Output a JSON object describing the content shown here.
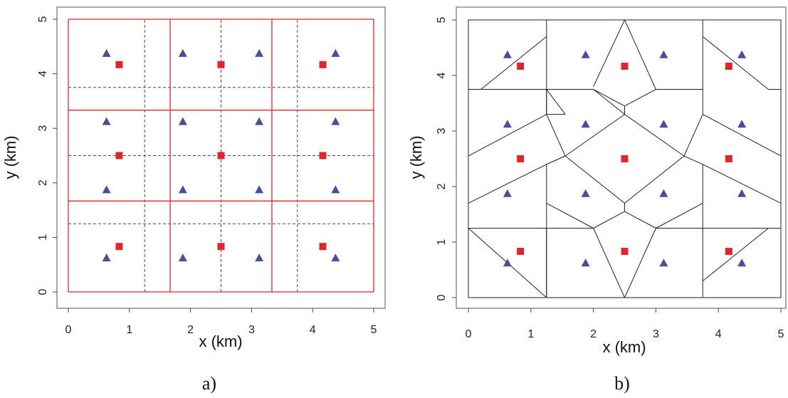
{
  "chart_data": [
    {
      "type": "scatter",
      "caption": "a)",
      "xlabel": "x (km)",
      "ylabel": "y (km)",
      "xlim": [
        0,
        5
      ],
      "ylim": [
        0,
        5
      ],
      "xticks": [
        0,
        1,
        2,
        3,
        4,
        5
      ],
      "yticks": [
        0,
        1,
        2,
        3,
        4,
        5
      ],
      "colors": {
        "triangles": "#4b4d9a",
        "squares": "#e0262b",
        "solid_grid": "#e0262b",
        "dashed_grid": "#3a3fb0",
        "frame": "#555555"
      },
      "series": [
        {
          "marker": "triangle",
          "x": [
            0.625,
            1.875,
            3.125,
            4.375,
            0.625,
            1.875,
            3.125,
            4.375,
            0.625,
            1.875,
            3.125,
            4.375,
            0.625,
            1.875,
            3.125,
            4.375
          ],
          "y": [
            4.375,
            4.375,
            4.375,
            4.375,
            3.125,
            3.125,
            3.125,
            3.125,
            1.875,
            1.875,
            1.875,
            1.875,
            0.625,
            0.625,
            0.625,
            0.625
          ]
        },
        {
          "marker": "square",
          "x": [
            0.833,
            2.5,
            4.167,
            0.833,
            2.5,
            4.167,
            0.833,
            2.5,
            4.167
          ],
          "y": [
            4.167,
            4.167,
            4.167,
            2.5,
            2.5,
            2.5,
            0.833,
            0.833,
            0.833
          ]
        }
      ],
      "grid_solid": {
        "x": [
          0,
          1.667,
          3.333,
          5
        ],
        "y": [
          0,
          1.667,
          3.333,
          5
        ]
      },
      "grid_dashed": {
        "x": [
          1.25,
          2.5,
          3.75
        ],
        "y": [
          1.25,
          2.5,
          3.75
        ]
      }
    },
    {
      "type": "scatter",
      "caption": "b)",
      "xlabel": "x (km)",
      "ylabel": "y (km)",
      "xlim": [
        0,
        5
      ],
      "ylim": [
        0,
        5
      ],
      "xticks": [
        0,
        1,
        2,
        3,
        4,
        5
      ],
      "yticks": [
        0,
        1,
        2,
        3,
        4,
        5
      ],
      "colors": {
        "triangles": "#4b4d9a",
        "squares": "#e0262b",
        "cells": "#222222",
        "frame": "#555555"
      },
      "series": [
        {
          "marker": "triangle",
          "x": [
            0.625,
            1.875,
            3.125,
            4.375,
            0.625,
            1.875,
            3.125,
            4.375,
            0.625,
            1.875,
            3.125,
            4.375,
            0.625,
            1.875,
            3.125,
            4.375
          ],
          "y": [
            4.375,
            4.375,
            4.375,
            4.375,
            3.125,
            3.125,
            3.125,
            3.125,
            1.875,
            1.875,
            1.875,
            1.875,
            0.625,
            0.625,
            0.625,
            0.625
          ]
        },
        {
          "marker": "square",
          "x": [
            0.833,
            2.5,
            4.167,
            0.833,
            2.5,
            4.167,
            0.833,
            2.5,
            4.167
          ],
          "y": [
            4.167,
            4.167,
            4.167,
            2.5,
            2.5,
            2.5,
            0.833,
            0.833,
            0.833
          ]
        }
      ],
      "cell_edges": [
        [
          1.25,
          5.0,
          1.25,
          4.7
        ],
        [
          1.25,
          4.7,
          0.2,
          3.75
        ],
        [
          0.0,
          3.75,
          0.2,
          3.75
        ],
        [
          1.25,
          4.7,
          1.25,
          3.75
        ],
        [
          0.2,
          3.75,
          1.25,
          3.75
        ],
        [
          1.25,
          3.75,
          1.25,
          3.3
        ],
        [
          1.25,
          3.3,
          0.0,
          2.55
        ],
        [
          1.25,
          3.3,
          1.55,
          2.55
        ],
        [
          1.25,
          2.4,
          1.55,
          2.55
        ],
        [
          1.25,
          2.4,
          0.0,
          1.7
        ],
        [
          1.25,
          2.4,
          1.25,
          1.7
        ],
        [
          0.0,
          1.25,
          1.25,
          1.25
        ],
        [
          1.25,
          1.7,
          1.25,
          1.25
        ],
        [
          1.25,
          1.25,
          1.25,
          0.0
        ],
        [
          0.0,
          1.25,
          1.25,
          0.0
        ],
        [
          1.25,
          3.75,
          1.55,
          3.3
        ],
        [
          1.55,
          3.3,
          1.25,
          3.3
        ],
        [
          2.0,
          3.8,
          2.5,
          5.0
        ],
        [
          1.25,
          3.75,
          2.0,
          3.75
        ],
        [
          2.0,
          3.75,
          2.5,
          3.45
        ],
        [
          2.5,
          3.45,
          2.5,
          3.3
        ],
        [
          2.5,
          3.3,
          2.0,
          3.75
        ],
        [
          1.25,
          3.75,
          1.25,
          3.3
        ],
        [
          2.5,
          3.45,
          3.0,
          3.75
        ],
        [
          3.0,
          3.75,
          2.5,
          5.0
        ],
        [
          3.0,
          3.75,
          3.75,
          3.75
        ],
        [
          3.75,
          5.0,
          3.75,
          4.7
        ],
        [
          3.75,
          4.7,
          4.8,
          3.75
        ],
        [
          3.75,
          4.7,
          3.75,
          3.75
        ],
        [
          4.8,
          3.75,
          5.0,
          3.75
        ],
        [
          3.75,
          3.75,
          3.75,
          3.3
        ],
        [
          3.75,
          3.3,
          5.0,
          2.55
        ],
        [
          3.75,
          3.3,
          3.45,
          2.55
        ],
        [
          3.75,
          2.4,
          3.45,
          2.55
        ],
        [
          3.75,
          2.4,
          5.0,
          1.7
        ],
        [
          3.75,
          2.4,
          3.75,
          1.7
        ],
        [
          3.75,
          1.7,
          3.75,
          1.25
        ],
        [
          3.75,
          1.25,
          4.8,
          1.25
        ],
        [
          4.8,
          1.25,
          5.0,
          1.25
        ],
        [
          3.75,
          1.25,
          3.75,
          0.0
        ],
        [
          4.8,
          1.25,
          3.75,
          0.3
        ],
        [
          2.5,
          3.3,
          1.55,
          2.55
        ],
        [
          2.5,
          3.3,
          3.45,
          2.55
        ],
        [
          1.55,
          2.55,
          2.5,
          1.7
        ],
        [
          3.45,
          2.55,
          2.5,
          1.7
        ],
        [
          1.55,
          2.55,
          1.25,
          2.4
        ],
        [
          2.5,
          1.7,
          2.5,
          1.55
        ],
        [
          2.5,
          1.55,
          2.0,
          1.25
        ],
        [
          2.5,
          1.55,
          3.0,
          1.25
        ],
        [
          1.25,
          1.7,
          2.0,
          1.25
        ],
        [
          3.75,
          1.7,
          3.0,
          1.25
        ],
        [
          2.0,
          1.25,
          1.25,
          1.25
        ],
        [
          3.0,
          1.25,
          3.75,
          1.25
        ],
        [
          2.0,
          1.25,
          2.5,
          0.0
        ],
        [
          3.0,
          1.25,
          2.5,
          0.0
        ],
        [
          1.25,
          1.25,
          1.25,
          0.0
        ]
      ]
    }
  ]
}
